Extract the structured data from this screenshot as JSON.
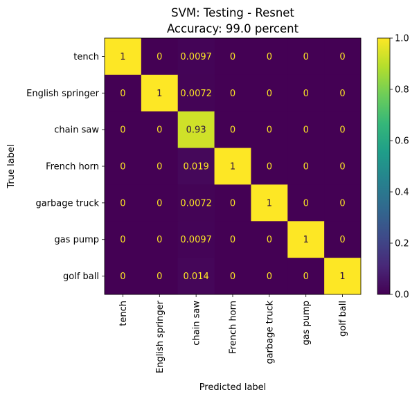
{
  "chart_data": {
    "type": "heatmap",
    "title": "SVM: Testing - Resnet",
    "subtitle": "Accuracy: 99.0 percent",
    "xlabel": "Predicted label",
    "ylabel": "True label",
    "row_labels": [
      "tench",
      "English springer",
      "chain saw",
      "French horn",
      "garbage truck",
      "gas pump",
      "golf ball"
    ],
    "col_labels": [
      "tench",
      "English springer",
      "chain saw",
      "French horn",
      "garbage truck",
      "gas pump",
      "golf ball"
    ],
    "values": [
      [
        1,
        0,
        0.0097,
        0,
        0,
        0,
        0
      ],
      [
        0,
        1,
        0.0072,
        0,
        0,
        0,
        0
      ],
      [
        0,
        0,
        0.93,
        0,
        0,
        0,
        0
      ],
      [
        0,
        0,
        0.019,
        1,
        0,
        0,
        0
      ],
      [
        0,
        0,
        0.0072,
        0,
        1,
        0,
        0
      ],
      [
        0,
        0,
        0.0097,
        0,
        0,
        1,
        0
      ],
      [
        0,
        0,
        0.014,
        0,
        0,
        0,
        1
      ]
    ],
    "cell_labels": [
      [
        "1",
        "0",
        "0.0097",
        "0",
        "0",
        "0",
        "0"
      ],
      [
        "0",
        "1",
        "0.0072",
        "0",
        "0",
        "0",
        "0"
      ],
      [
        "0",
        "0",
        "0.93",
        "0",
        "0",
        "0",
        "0"
      ],
      [
        "0",
        "0",
        "0.019",
        "1",
        "0",
        "0",
        "0"
      ],
      [
        "0",
        "0",
        "0.0072",
        "0",
        "1",
        "0",
        "0"
      ],
      [
        "0",
        "0",
        "0.0097",
        "0",
        "0",
        "1",
        "0"
      ],
      [
        "0",
        "0",
        "0.014",
        "0",
        "0",
        "0",
        "1"
      ]
    ],
    "colormap": "viridis",
    "colorbar": {
      "range": [
        0,
        1
      ],
      "ticks": [
        0.0,
        0.2,
        0.4,
        0.6,
        0.8,
        1.0
      ],
      "tick_labels": [
        "0.0",
        "0.2",
        "0.4",
        "0.6",
        "0.8",
        "1.0"
      ]
    },
    "grid": false
  }
}
